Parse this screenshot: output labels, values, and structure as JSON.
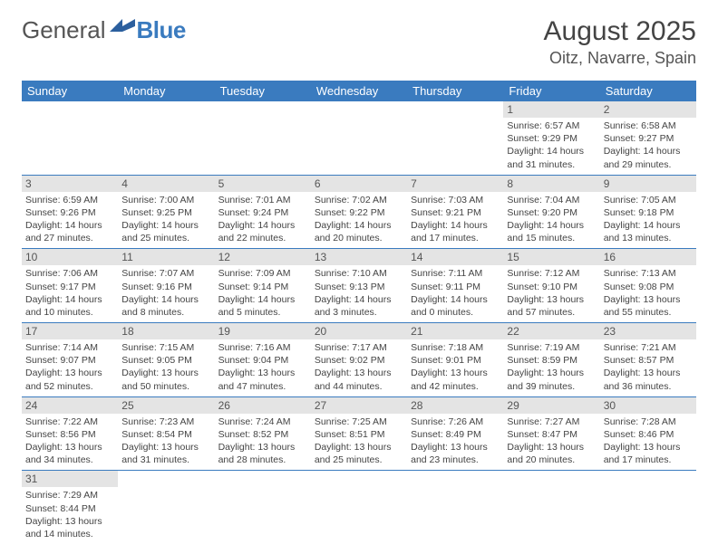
{
  "logo": {
    "general": "General",
    "blue": "Blue"
  },
  "title": "August 2025",
  "location": "Oitz, Navarre, Spain",
  "colors": {
    "accent": "#3a7bbf",
    "dayHeaderBg": "#e4e4e4",
    "text": "#444"
  },
  "dayNames": [
    "Sunday",
    "Monday",
    "Tuesday",
    "Wednesday",
    "Thursday",
    "Friday",
    "Saturday"
  ],
  "weeks": [
    [
      null,
      null,
      null,
      null,
      null,
      {
        "n": "1",
        "sr": "Sunrise: 6:57 AM",
        "ss": "Sunset: 9:29 PM",
        "dl": "Daylight: 14 hours and 31 minutes."
      },
      {
        "n": "2",
        "sr": "Sunrise: 6:58 AM",
        "ss": "Sunset: 9:27 PM",
        "dl": "Daylight: 14 hours and 29 minutes."
      }
    ],
    [
      {
        "n": "3",
        "sr": "Sunrise: 6:59 AM",
        "ss": "Sunset: 9:26 PM",
        "dl": "Daylight: 14 hours and 27 minutes."
      },
      {
        "n": "4",
        "sr": "Sunrise: 7:00 AM",
        "ss": "Sunset: 9:25 PM",
        "dl": "Daylight: 14 hours and 25 minutes."
      },
      {
        "n": "5",
        "sr": "Sunrise: 7:01 AM",
        "ss": "Sunset: 9:24 PM",
        "dl": "Daylight: 14 hours and 22 minutes."
      },
      {
        "n": "6",
        "sr": "Sunrise: 7:02 AM",
        "ss": "Sunset: 9:22 PM",
        "dl": "Daylight: 14 hours and 20 minutes."
      },
      {
        "n": "7",
        "sr": "Sunrise: 7:03 AM",
        "ss": "Sunset: 9:21 PM",
        "dl": "Daylight: 14 hours and 17 minutes."
      },
      {
        "n": "8",
        "sr": "Sunrise: 7:04 AM",
        "ss": "Sunset: 9:20 PM",
        "dl": "Daylight: 14 hours and 15 minutes."
      },
      {
        "n": "9",
        "sr": "Sunrise: 7:05 AM",
        "ss": "Sunset: 9:18 PM",
        "dl": "Daylight: 14 hours and 13 minutes."
      }
    ],
    [
      {
        "n": "10",
        "sr": "Sunrise: 7:06 AM",
        "ss": "Sunset: 9:17 PM",
        "dl": "Daylight: 14 hours and 10 minutes."
      },
      {
        "n": "11",
        "sr": "Sunrise: 7:07 AM",
        "ss": "Sunset: 9:16 PM",
        "dl": "Daylight: 14 hours and 8 minutes."
      },
      {
        "n": "12",
        "sr": "Sunrise: 7:09 AM",
        "ss": "Sunset: 9:14 PM",
        "dl": "Daylight: 14 hours and 5 minutes."
      },
      {
        "n": "13",
        "sr": "Sunrise: 7:10 AM",
        "ss": "Sunset: 9:13 PM",
        "dl": "Daylight: 14 hours and 3 minutes."
      },
      {
        "n": "14",
        "sr": "Sunrise: 7:11 AM",
        "ss": "Sunset: 9:11 PM",
        "dl": "Daylight: 14 hours and 0 minutes."
      },
      {
        "n": "15",
        "sr": "Sunrise: 7:12 AM",
        "ss": "Sunset: 9:10 PM",
        "dl": "Daylight: 13 hours and 57 minutes."
      },
      {
        "n": "16",
        "sr": "Sunrise: 7:13 AM",
        "ss": "Sunset: 9:08 PM",
        "dl": "Daylight: 13 hours and 55 minutes."
      }
    ],
    [
      {
        "n": "17",
        "sr": "Sunrise: 7:14 AM",
        "ss": "Sunset: 9:07 PM",
        "dl": "Daylight: 13 hours and 52 minutes."
      },
      {
        "n": "18",
        "sr": "Sunrise: 7:15 AM",
        "ss": "Sunset: 9:05 PM",
        "dl": "Daylight: 13 hours and 50 minutes."
      },
      {
        "n": "19",
        "sr": "Sunrise: 7:16 AM",
        "ss": "Sunset: 9:04 PM",
        "dl": "Daylight: 13 hours and 47 minutes."
      },
      {
        "n": "20",
        "sr": "Sunrise: 7:17 AM",
        "ss": "Sunset: 9:02 PM",
        "dl": "Daylight: 13 hours and 44 minutes."
      },
      {
        "n": "21",
        "sr": "Sunrise: 7:18 AM",
        "ss": "Sunset: 9:01 PM",
        "dl": "Daylight: 13 hours and 42 minutes."
      },
      {
        "n": "22",
        "sr": "Sunrise: 7:19 AM",
        "ss": "Sunset: 8:59 PM",
        "dl": "Daylight: 13 hours and 39 minutes."
      },
      {
        "n": "23",
        "sr": "Sunrise: 7:21 AM",
        "ss": "Sunset: 8:57 PM",
        "dl": "Daylight: 13 hours and 36 minutes."
      }
    ],
    [
      {
        "n": "24",
        "sr": "Sunrise: 7:22 AM",
        "ss": "Sunset: 8:56 PM",
        "dl": "Daylight: 13 hours and 34 minutes."
      },
      {
        "n": "25",
        "sr": "Sunrise: 7:23 AM",
        "ss": "Sunset: 8:54 PM",
        "dl": "Daylight: 13 hours and 31 minutes."
      },
      {
        "n": "26",
        "sr": "Sunrise: 7:24 AM",
        "ss": "Sunset: 8:52 PM",
        "dl": "Daylight: 13 hours and 28 minutes."
      },
      {
        "n": "27",
        "sr": "Sunrise: 7:25 AM",
        "ss": "Sunset: 8:51 PM",
        "dl": "Daylight: 13 hours and 25 minutes."
      },
      {
        "n": "28",
        "sr": "Sunrise: 7:26 AM",
        "ss": "Sunset: 8:49 PM",
        "dl": "Daylight: 13 hours and 23 minutes."
      },
      {
        "n": "29",
        "sr": "Sunrise: 7:27 AM",
        "ss": "Sunset: 8:47 PM",
        "dl": "Daylight: 13 hours and 20 minutes."
      },
      {
        "n": "30",
        "sr": "Sunrise: 7:28 AM",
        "ss": "Sunset: 8:46 PM",
        "dl": "Daylight: 13 hours and 17 minutes."
      }
    ],
    [
      {
        "n": "31",
        "sr": "Sunrise: 7:29 AM",
        "ss": "Sunset: 8:44 PM",
        "dl": "Daylight: 13 hours and 14 minutes."
      },
      null,
      null,
      null,
      null,
      null,
      null
    ]
  ]
}
